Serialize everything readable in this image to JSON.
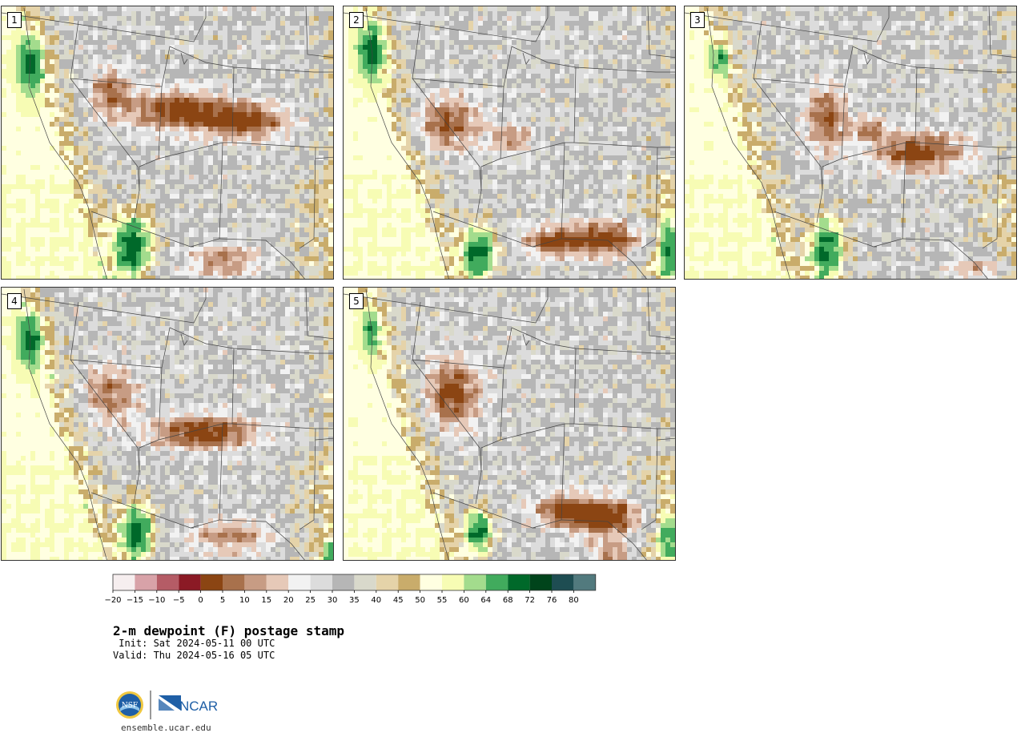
{
  "panels": [
    {
      "label": "1",
      "dry_centers": [
        [
          0.52,
          0.37,
          0.15,
          0.07,
          0.95
        ],
        [
          0.72,
          0.41,
          0.12,
          0.06,
          1.0
        ],
        [
          0.32,
          0.3,
          0.06,
          0.08,
          0.7
        ],
        [
          0.66,
          0.92,
          0.1,
          0.06,
          0.6
        ]
      ],
      "moist_centers": [
        [
          0.39,
          0.86,
          0.06,
          0.12,
          1.0
        ],
        [
          0.08,
          0.2,
          0.04,
          0.1,
          0.6
        ]
      ]
    },
    {
      "label": "2",
      "dry_centers": [
        [
          0.3,
          0.42,
          0.1,
          0.1,
          0.8
        ],
        [
          0.5,
          0.47,
          0.06,
          0.05,
          0.6
        ],
        [
          0.78,
          0.84,
          0.12,
          0.06,
          1.0
        ],
        [
          0.62,
          0.85,
          0.08,
          0.05,
          0.8
        ]
      ],
      "moist_centers": [
        [
          0.4,
          0.89,
          0.05,
          0.1,
          1.0
        ],
        [
          0.08,
          0.15,
          0.04,
          0.1,
          0.7
        ],
        [
          0.97,
          0.88,
          0.04,
          0.12,
          0.7
        ]
      ]
    },
    {
      "label": "3",
      "dry_centers": [
        [
          0.42,
          0.4,
          0.06,
          0.12,
          0.8
        ],
        [
          0.7,
          0.52,
          0.13,
          0.07,
          0.95
        ],
        [
          0.55,
          0.44,
          0.05,
          0.04,
          0.7
        ],
        [
          0.88,
          0.95,
          0.08,
          0.05,
          0.6
        ]
      ],
      "moist_centers": [
        [
          0.42,
          0.88,
          0.05,
          0.12,
          1.0
        ],
        [
          0.1,
          0.18,
          0.03,
          0.06,
          0.5
        ]
      ]
    },
    {
      "label": "4",
      "dry_centers": [
        [
          0.32,
          0.38,
          0.08,
          0.1,
          0.7
        ],
        [
          0.6,
          0.52,
          0.15,
          0.06,
          1.0
        ],
        [
          0.68,
          0.9,
          0.12,
          0.06,
          0.6
        ]
      ],
      "moist_centers": [
        [
          0.4,
          0.88,
          0.05,
          0.11,
          1.0
        ],
        [
          0.08,
          0.18,
          0.04,
          0.1,
          0.6
        ],
        [
          0.98,
          0.97,
          0.03,
          0.05,
          0.6
        ]
      ]
    },
    {
      "label": "5",
      "dry_centers": [
        [
          0.32,
          0.38,
          0.08,
          0.12,
          0.95
        ],
        [
          0.78,
          0.83,
          0.12,
          0.07,
          1.0
        ],
        [
          0.65,
          0.8,
          0.09,
          0.05,
          0.8
        ],
        [
          0.8,
          0.97,
          0.06,
          0.05,
          0.6
        ]
      ],
      "moist_centers": [
        [
          0.4,
          0.88,
          0.04,
          0.08,
          1.0
        ],
        [
          0.08,
          0.15,
          0.03,
          0.08,
          0.5
        ],
        [
          0.97,
          0.9,
          0.04,
          0.1,
          0.6
        ]
      ]
    }
  ],
  "colorbar": {
    "colors": [
      "#f6eeef",
      "#d8a2a8",
      "#b55c66",
      "#8b1a25",
      "#8b4513",
      "#a8714c",
      "#c79c84",
      "#e6c9b8",
      "#f2f2f2",
      "#dcdcdc",
      "#b6b6b6",
      "#d9d9cb",
      "#e5d3a9",
      "#c9ac6b",
      "#ffffe1",
      "#f7fcb4",
      "#a3dc8d",
      "#41ab5d",
      "#00692a",
      "#00441b",
      "#1e4d52",
      "#527a7e"
    ],
    "ticks": [
      "−20",
      "−15",
      "−10",
      "−5",
      "0",
      "5",
      "10",
      "15",
      "20",
      "25",
      "30",
      "35",
      "40",
      "45",
      "50",
      "55",
      "60",
      "64",
      "68",
      "72",
      "76",
      "80"
    ]
  },
  "title": "2-m dewpoint (F) postage stamp",
  "init": " Init: Sat 2024-05-11 00 UTC",
  "valid": "Valid: Thu 2024-05-16 05 UTC",
  "logos": {
    "nsf": "NSF",
    "ncar": "NCAR"
  },
  "url": "ensemble.ucar.edu"
}
